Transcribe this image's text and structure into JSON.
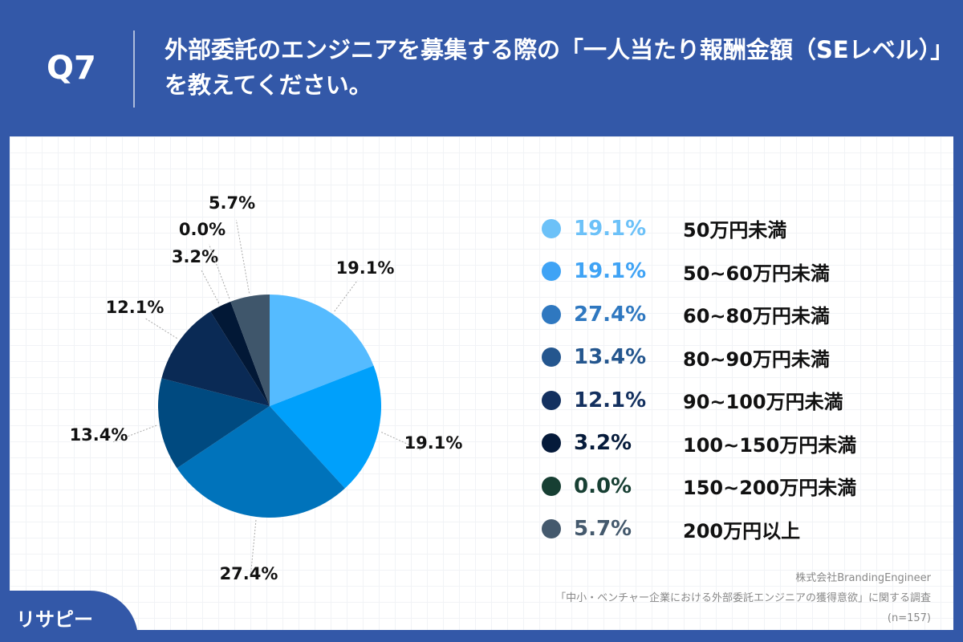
{
  "header": {
    "question_no": "Q7",
    "title": "外部委託のエンジニアを募集する際の「一人当たり報酬金額（SEレベル）」を教えてください。"
  },
  "chart_data": {
    "type": "pie",
    "start": "top",
    "direction": "clockwise",
    "categories": [
      "50万円未満",
      "50~60万円未満",
      "60~80万円未満",
      "80~90万円未満",
      "90~100万円未満",
      "100~150万円未満",
      "150~200万円未満",
      "200万円以上"
    ],
    "values": [
      19.1,
      19.1,
      27.4,
      13.4,
      12.1,
      3.2,
      0.0,
      5.7
    ],
    "labels": [
      "19.1%",
      "19.1%",
      "27.4%",
      "13.4%",
      "12.1%",
      "3.2%",
      "0.0%",
      "5.7%"
    ],
    "slice_colors": [
      "#55bbff",
      "#00a0fb",
      "#0073bb",
      "#004a80",
      "#0a2a55",
      "#021836",
      "#163d31",
      "#3f566b"
    ],
    "legend_colors": [
      "#6cc1f8",
      "#3fa3f5",
      "#2f78c0",
      "#24568e",
      "#13305f",
      "#051a3a",
      "#173f33",
      "#44596d"
    ],
    "legend_placement": "right"
  },
  "source": {
    "company": "株式会社BrandingEngineer",
    "survey": "「中小・ベンチャー企業における外部委託エンジニアの獲得意欲」に関する調査",
    "n": "(n=157)"
  },
  "brand": {
    "logo_text": "リサピー"
  }
}
